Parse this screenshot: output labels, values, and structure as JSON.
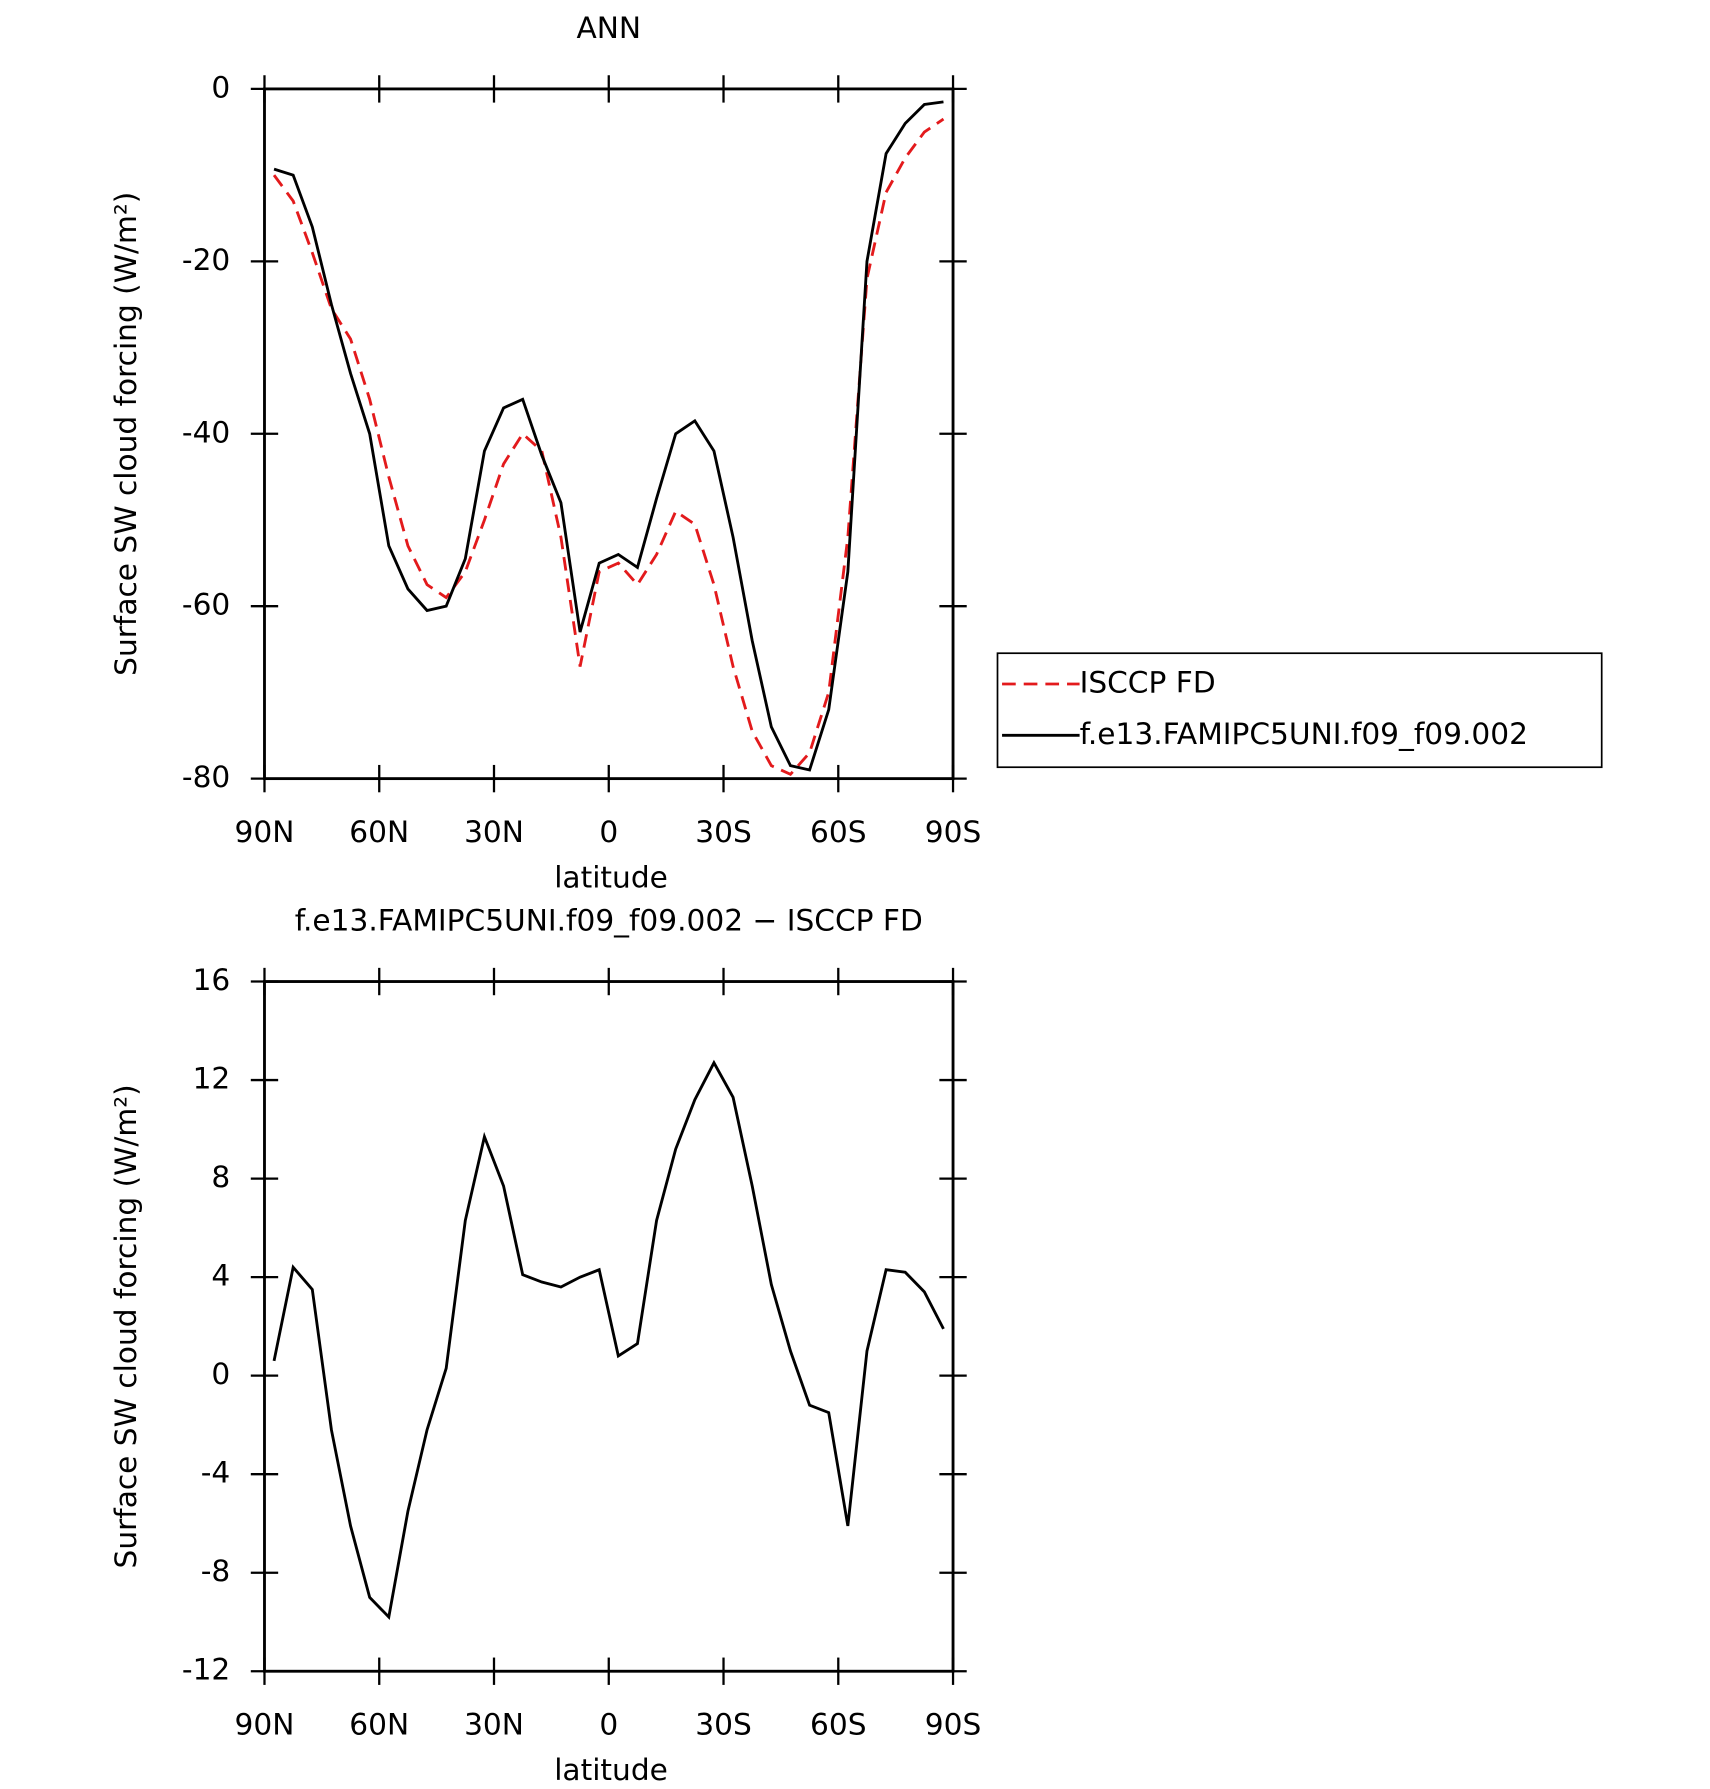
{
  "chart_data": [
    {
      "type": "line",
      "title": "ANN",
      "xlabel": "latitude",
      "ylabel": "Surface SW cloud forcing (W/m²)",
      "x": [
        87.5,
        82.5,
        77.5,
        72.5,
        67.5,
        62.5,
        57.5,
        52.5,
        47.5,
        42.5,
        37.5,
        32.5,
        27.5,
        22.5,
        17.5,
        12.5,
        7.5,
        2.5,
        -2.5,
        -7.5,
        -12.5,
        -17.5,
        -22.5,
        -27.5,
        -32.5,
        -37.5,
        -42.5,
        -47.5,
        -52.5,
        -57.5,
        -62.5,
        -67.5,
        -72.5,
        -77.5,
        -82.5,
        -87.5
      ],
      "xlim": [
        90,
        -90
      ],
      "xticks": [
        {
          "value": 90,
          "label": "90N"
        },
        {
          "value": 60,
          "label": "60N"
        },
        {
          "value": 30,
          "label": "30N"
        },
        0,
        {
          "value": -30,
          "label": "30S"
        },
        {
          "value": -60,
          "label": "60S"
        },
        {
          "value": -90,
          "label": "90S"
        }
      ],
      "ylim": [
        -80,
        0
      ],
      "yticks": [
        -80,
        -60,
        -40,
        -20,
        0
      ],
      "legend": "outside-right",
      "series": [
        {
          "name": "ISCCP FD",
          "color": "#e31a1c",
          "linestyle": "dashed",
          "values": [
            -10,
            -13,
            -19,
            -25.5,
            -29,
            -36,
            -45,
            -53,
            -57.5,
            -59,
            -56,
            -50,
            -43.5,
            -40,
            -42,
            -52,
            -67,
            -56,
            -55,
            -57.5,
            -54,
            -49,
            -50.5,
            -57.5,
            -67,
            -74.5,
            -78.5,
            -79.5,
            -77,
            -70,
            -52,
            -22,
            -12,
            -8,
            -5,
            -3.5
          ]
        },
        {
          "name": "f.e13.FAMIPC5UNI.f09_f09.002",
          "color": "#000000",
          "linestyle": "solid",
          "values": [
            -9.3,
            -10,
            -16,
            -25,
            -33,
            -40,
            -53,
            -58,
            -60.5,
            -60,
            -54.5,
            -42,
            -37,
            -36,
            -42.5,
            -48,
            -63,
            -55,
            -54,
            -55.5,
            -47.5,
            -40,
            -38.5,
            -42,
            -52,
            -64,
            -74,
            -78.5,
            -79,
            -72,
            -56,
            -20,
            -7.5,
            -4,
            -1.8,
            -1.5
          ]
        }
      ]
    },
    {
      "type": "line",
      "title": "f.e13.FAMIPC5UNI.f09_f09.002 − ISCCP FD",
      "xlabel": "latitude",
      "ylabel": "Surface SW cloud forcing (W/m²)",
      "x": [
        87.5,
        82.5,
        77.5,
        72.5,
        67.5,
        62.5,
        57.5,
        52.5,
        47.5,
        42.5,
        37.5,
        32.5,
        27.5,
        22.5,
        17.5,
        12.5,
        7.5,
        2.5,
        -2.5,
        -7.5,
        -12.5,
        -17.5,
        -22.5,
        -27.5,
        -32.5,
        -37.5,
        -42.5,
        -47.5,
        -52.5,
        -57.5,
        -62.5,
        -67.5,
        -72.5,
        -77.5,
        -82.5,
        -87.5
      ],
      "xlim": [
        90,
        -90
      ],
      "xticks": [
        {
          "value": 90,
          "label": "90N"
        },
        {
          "value": 60,
          "label": "60N"
        },
        {
          "value": 30,
          "label": "30N"
        },
        0,
        {
          "value": -30,
          "label": "30S"
        },
        {
          "value": -60,
          "label": "60S"
        },
        {
          "value": -90,
          "label": "90S"
        }
      ],
      "ylim": [
        -12,
        16
      ],
      "yticks": [
        -12,
        -8,
        -4,
        0,
        4,
        8,
        12,
        16
      ],
      "series": [
        {
          "color": "#000000",
          "linestyle": "solid",
          "values": [
            0.6,
            4.4,
            3.5,
            -2.2,
            -6.1,
            -9.0,
            -9.8,
            -5.5,
            -2.2,
            0.3,
            6.3,
            9.7,
            7.7,
            4.1,
            3.8,
            3.6,
            4.0,
            4.3,
            0.8,
            1.3,
            6.3,
            9.2,
            11.2,
            12.7,
            11.3,
            7.7,
            3.7,
            1.0,
            -1.2,
            -1.5,
            -6.1,
            1.0,
            4.3,
            4.2,
            3.4,
            1.9
          ]
        }
      ]
    }
  ]
}
